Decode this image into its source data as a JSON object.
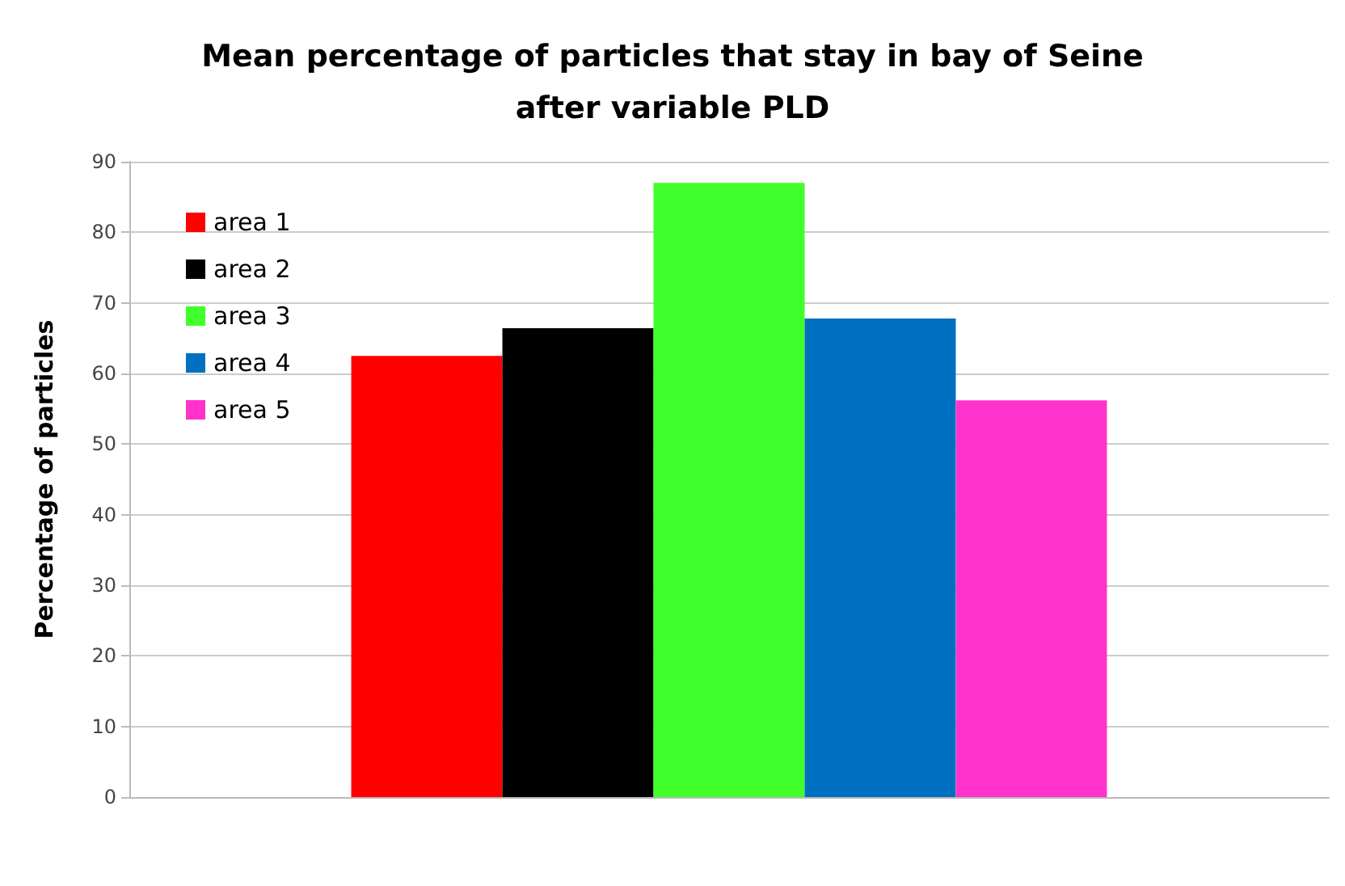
{
  "chart_data": {
    "type": "bar",
    "title": "Mean percentage of particles that stay in bay of Seine\nafter variable PLD",
    "ylabel": "Percentage of particles",
    "categories": [
      null
    ],
    "series": [
      {
        "name": "area 1",
        "color": "#ff0000",
        "values": [
          62.5
        ]
      },
      {
        "name": "area 2",
        "color": "#000000",
        "values": [
          66.4
        ]
      },
      {
        "name": "area 3",
        "color": "#40ff2a",
        "values": [
          87.0
        ]
      },
      {
        "name": "area 4",
        "color": "#0070c0",
        "values": [
          67.8
        ]
      },
      {
        "name": "area 5",
        "color": "#ff33cc",
        "values": [
          56.2
        ]
      }
    ],
    "ylim": [
      0,
      90
    ],
    "yticks": [
      0,
      10,
      20,
      30,
      40,
      50,
      60,
      70,
      80,
      90
    ],
    "grid": "y",
    "legend": "top left"
  }
}
